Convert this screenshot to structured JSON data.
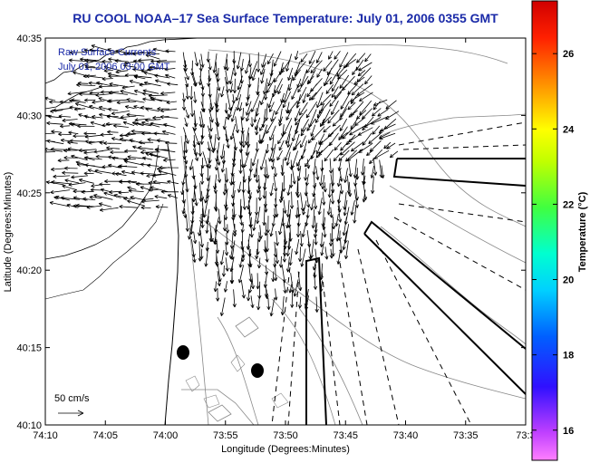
{
  "title": "RU COOL  NOAA–17  Sea Surface Temperature:  July 01, 2006 0355 GMT",
  "legend_line1": "Raw Surface Currents",
  "legend_line2": "July 01, 2006 03:00 GMT",
  "scale_label": "50 cm/s",
  "x_axis_label": "Longitude (Degrees:Minutes)",
  "y_axis_label": "Latitude (Degrees:Minutes)",
  "x_ticks": [
    "74:10",
    "74:05",
    "74:00",
    "73:55",
    "73:50",
    "73:45",
    "73:40",
    "73:35",
    "73:3"
  ],
  "y_ticks": [
    "40:35",
    "40:30",
    "40:25",
    "40:20",
    "40:15",
    "40:10"
  ],
  "colorbar": {
    "label": "Temperature (°C)",
    "ticks": [
      "26",
      "24",
      "22",
      "20",
      "18",
      "16"
    ],
    "range": [
      15.2,
      27.4
    ]
  },
  "colors": {
    "title": "#1a2aa8",
    "arrows": "#000000",
    "contours": "#888888"
  }
}
